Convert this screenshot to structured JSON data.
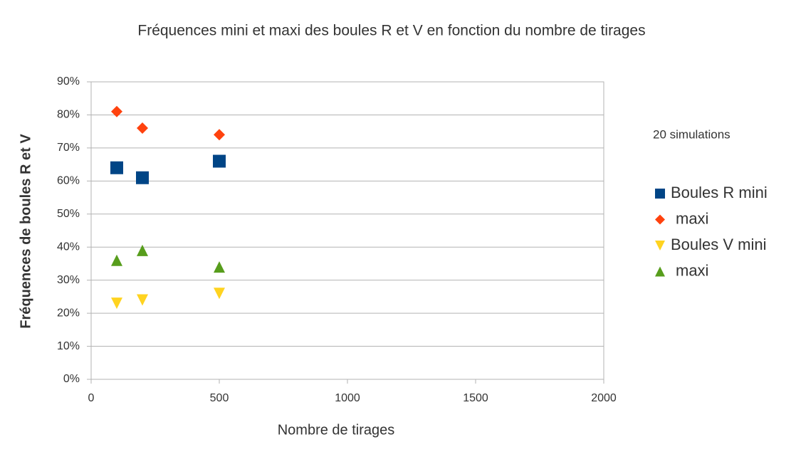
{
  "chart_data": {
    "type": "scatter",
    "title": "Fréquences mini et maxi des boules R et V en fonction du nombre de tirages",
    "x_label": "Nombre de tirages",
    "y_label": "Fréquences de boules R et V",
    "annotation": "20 simulations",
    "x": [
      100,
      200,
      500
    ],
    "series": [
      {
        "name": "Boules R mini",
        "color": "#004586",
        "marker": "square",
        "values": [
          64,
          61,
          66
        ]
      },
      {
        "name": "maxi",
        "color": "#ff420e",
        "marker": "diamond",
        "values": [
          81,
          76,
          74
        ]
      },
      {
        "name": "Boules V mini",
        "color": "#ffd320",
        "marker": "triangle-down",
        "values": [
          23,
          24,
          26
        ]
      },
      {
        "name": "maxi",
        "color": "#579d1c",
        "marker": "triangle-up",
        "values": [
          36,
          39,
          34
        ]
      }
    ],
    "xlim": [
      0,
      2000
    ],
    "xticks": [
      0,
      500,
      1000,
      1500,
      2000
    ],
    "ylim": [
      0,
      90
    ],
    "yticks": [
      {
        "value": 0,
        "label": "0%"
      },
      {
        "value": 10,
        "label": "10%"
      },
      {
        "value": 20,
        "label": "20%"
      },
      {
        "value": 30,
        "label": "30%"
      },
      {
        "value": 40,
        "label": "40%"
      },
      {
        "value": 50,
        "label": "50%"
      },
      {
        "value": 60,
        "label": "60%"
      },
      {
        "value": 70,
        "label": "70%"
      },
      {
        "value": 80,
        "label": "80%"
      },
      {
        "value": 90,
        "label": "90%"
      }
    ],
    "grid": true,
    "legend": "right"
  }
}
